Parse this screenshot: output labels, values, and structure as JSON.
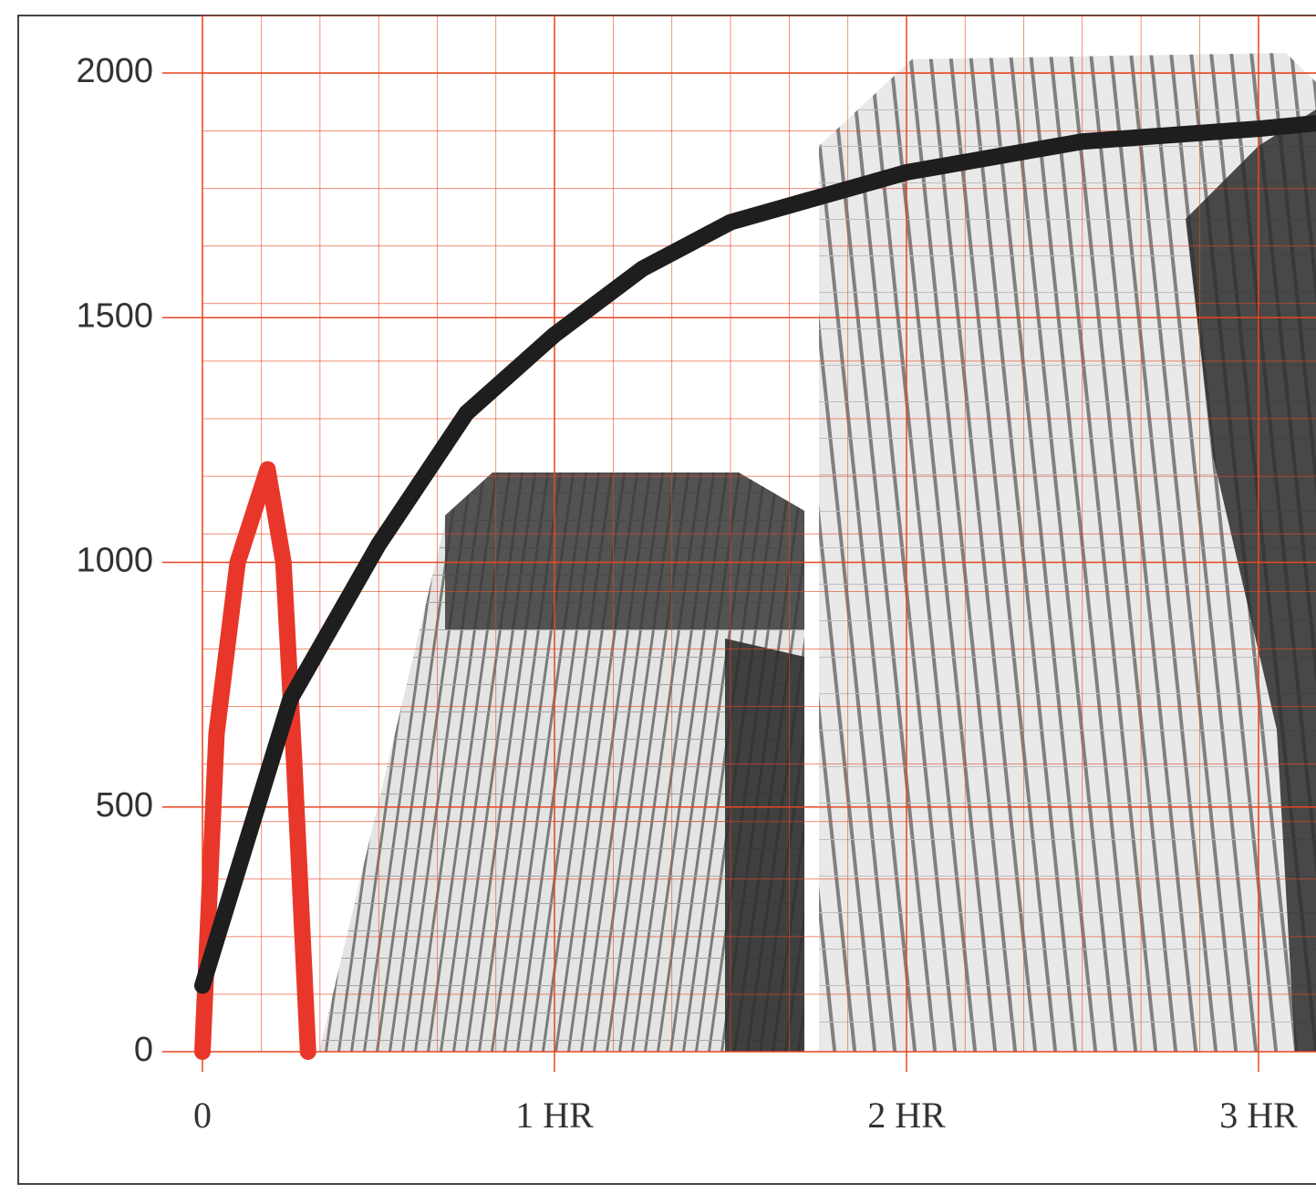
{
  "chart_data": {
    "type": "line",
    "xlim": [
      0,
      3.16
    ],
    "xticks": [
      0,
      {
        "value": 1,
        "label": "1 HR"
      },
      {
        "value": 2,
        "label": "2 HR"
      },
      {
        "value": 3,
        "label": "3 HR"
      }
    ],
    "ylim": [
      0,
      2000
    ],
    "yticks": [
      0,
      500,
      1000,
      1500,
      2000
    ],
    "grid": true,
    "grid_color": "#e8461e",
    "series": [
      {
        "color": "#e8372a",
        "x": [
          0,
          0.04,
          0.1,
          0.185,
          0.23,
          0.26,
          0.3
        ],
        "values": [
          0,
          650,
          1000,
          1190,
          1000,
          600,
          0
        ]
      },
      {
        "color": "#1e1e1e",
        "x": [
          0,
          0.25,
          0.5,
          0.75,
          1,
          1.25,
          1.5,
          2,
          2.5,
          3,
          3.16
        ],
        "values": [
          135,
          721,
          1036,
          1305,
          1465,
          1600,
          1695,
          1797,
          1860,
          1886,
          1897
        ]
      }
    ]
  }
}
